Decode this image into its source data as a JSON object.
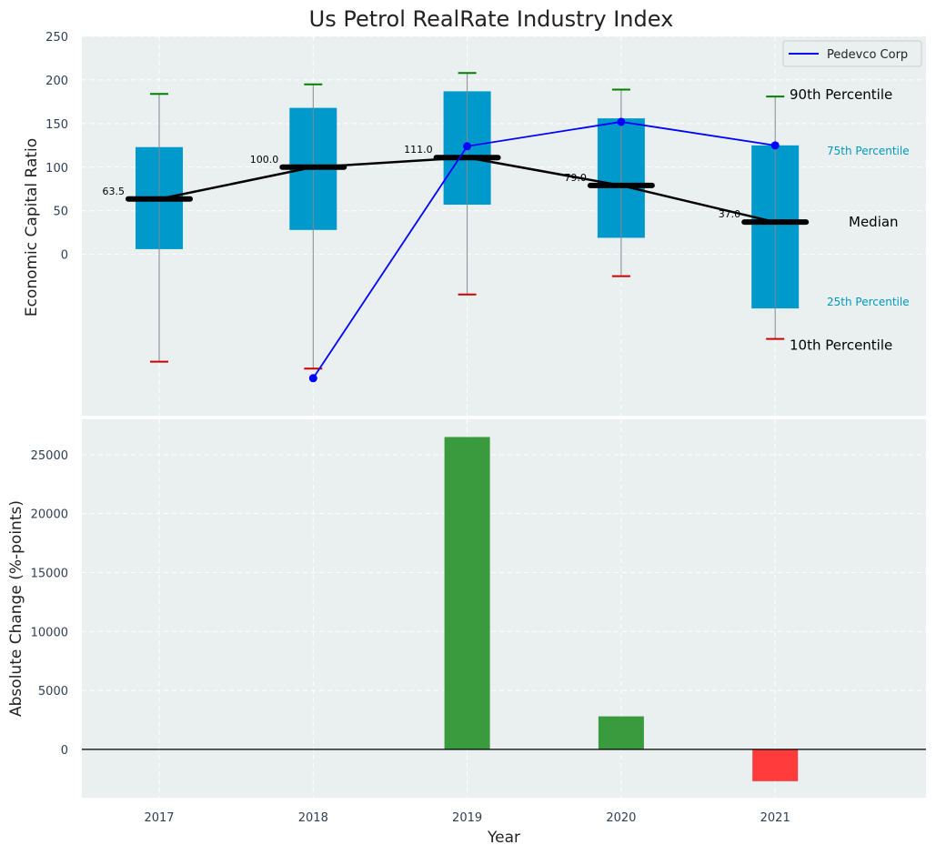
{
  "chart_data": [
    {
      "type": "box",
      "title": "Us Petrol RealRate Industry Index",
      "ylabel": "Economic Capital Ratio",
      "ylim": [
        -185,
        250
      ],
      "yticks": [
        0,
        50,
        100,
        150,
        200,
        250
      ],
      "categories": [
        "2017",
        "2018",
        "2019",
        "2020",
        "2021"
      ],
      "boxes": [
        {
          "year": "2017",
          "p10": -123,
          "p25": 6,
          "median": 63.5,
          "p75": 123,
          "p90": 184,
          "median_label": "63.5"
        },
        {
          "year": "2018",
          "p10": -131,
          "p25": 28,
          "median": 100.0,
          "p75": 168,
          "p90": 195,
          "median_label": "100.0"
        },
        {
          "year": "2019",
          "p10": -46,
          "p25": 57,
          "median": 111.0,
          "p75": 187,
          "p90": 208,
          "median_label": "111.0"
        },
        {
          "year": "2020",
          "p10": -25,
          "p25": 19,
          "median": 79.0,
          "p75": 156,
          "p90": 189,
          "median_label": "79.0"
        },
        {
          "year": "2021",
          "p10": -97,
          "p25": -62,
          "median": 37.0,
          "p75": 125,
          "p90": 181,
          "median_label": "37.0"
        }
      ],
      "series": [
        {
          "name": "Pedevco Corp",
          "color": "#0000ff",
          "x": [
            "2018",
            "2019",
            "2020",
            "2021"
          ],
          "values": [
            -142,
            124,
            152,
            125
          ]
        }
      ],
      "annotations": {
        "p90": "90th Percentile",
        "p75": "75th Percentile",
        "median": "Median",
        "p25": "25th Percentile",
        "p10": "10th Percentile"
      },
      "legend_position": "top-right",
      "grid": true
    },
    {
      "type": "bar",
      "ylabel": "Absolute Change (%-points)",
      "xlabel": "Year",
      "ylim": [
        -4100,
        28000
      ],
      "yticks": [
        0,
        5000,
        10000,
        15000,
        20000,
        25000
      ],
      "categories": [
        "2017",
        "2018",
        "2019",
        "2020",
        "2021"
      ],
      "values": [
        0,
        0,
        26500,
        2800,
        -2700
      ],
      "positive_color": "#3a9b3e",
      "negative_color": "#ff3b3b",
      "grid": true
    }
  ],
  "colors": {
    "plot_bg": "#eaeff0",
    "box": "#0099cc",
    "median_line": "#000000",
    "whisker_top": "#008000",
    "whisker_bottom": "#cc0000",
    "pct75_text": "#0099bb",
    "pct25_text": "#0099bb"
  }
}
